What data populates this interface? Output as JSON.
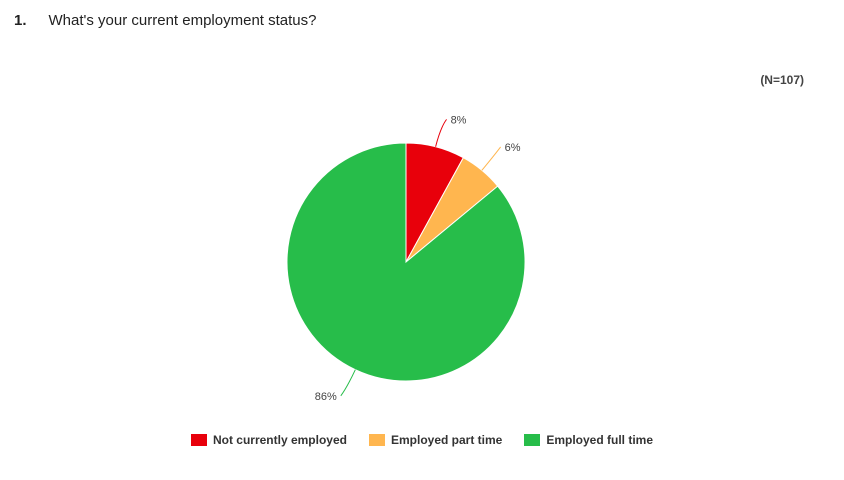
{
  "question": {
    "number": "1.",
    "text": "What's your current employment status?"
  },
  "sample_size": "(N=107)",
  "chart_data": {
    "type": "pie",
    "title": "What's your current employment status?",
    "categories": [
      "Not currently employed",
      "Employed part time",
      "Employed full time"
    ],
    "values": [
      8,
      6,
      86
    ],
    "value_labels": [
      "8%",
      "6%",
      "86%"
    ],
    "colors": [
      "#e8000b",
      "#ffb64f",
      "#27bd4a"
    ],
    "legend_position": "bottom",
    "start_angle": "12 o'clock",
    "direction": "clockwise"
  }
}
